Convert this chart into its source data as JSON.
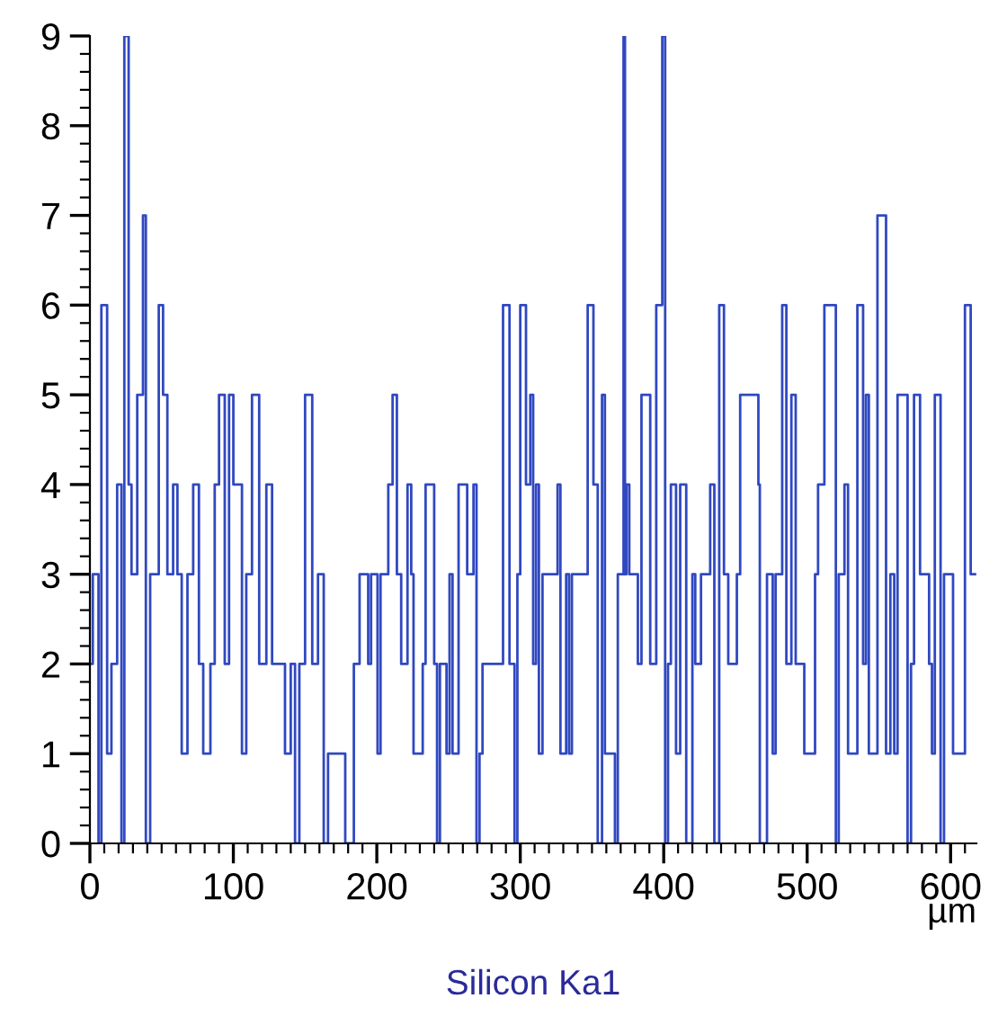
{
  "chart_data": {
    "type": "step",
    "title": "Silicon Ka1",
    "xlabel": "µm",
    "x": [
      0,
      2,
      6,
      8,
      12,
      15,
      19,
      22,
      24,
      27,
      29,
      33,
      37,
      39,
      42,
      48,
      51,
      54,
      58,
      61,
      64,
      68,
      72,
      76,
      79,
      84,
      87,
      90,
      94,
      97,
      100,
      103,
      106,
      109,
      113,
      118,
      123,
      127,
      132,
      136,
      140,
      143,
      146,
      150,
      155,
      159,
      163,
      166,
      172,
      178,
      184,
      188,
      194,
      196,
      200.5,
      202.6,
      208,
      211,
      214,
      217,
      221.4,
      224,
      225.6,
      232,
      234,
      240,
      242,
      244,
      248.6,
      250.7,
      252.8,
      257,
      263,
      267.4,
      269.5,
      271.6,
      273.7,
      288,
      292.5,
      296,
      298,
      300,
      304,
      307,
      309,
      311,
      313,
      315.5,
      326,
      328,
      332,
      334,
      336,
      347,
      351,
      354,
      357,
      359,
      366,
      368,
      372,
      373,
      374,
      376,
      382,
      384.5,
      388.6,
      390.6,
      394.8,
      399,
      401,
      403,
      405,
      408.6,
      411.5,
      415.7,
      420,
      422,
      426,
      432.4,
      435.3,
      438.7,
      442,
      445,
      451,
      453.3,
      466,
      467,
      472,
      476,
      478,
      482.6,
      485.5,
      489,
      492,
      498,
      505.5,
      507.6,
      512,
      520,
      522,
      526,
      528.5,
      535,
      539,
      541,
      543,
      549,
      555,
      558,
      560.7,
      563,
      570,
      572.4,
      574.5,
      578.7,
      585,
      587,
      589,
      593,
      595.4,
      601.7,
      610,
      614,
      617
    ],
    "series": [
      {
        "color": "#3048c0",
        "values": [
          2,
          3,
          0,
          6,
          1,
          2,
          4,
          0,
          9,
          4,
          3,
          5,
          7,
          0,
          3,
          6,
          5,
          3,
          4,
          3,
          1,
          3,
          4,
          2,
          1,
          2,
          4,
          5,
          2,
          5,
          4,
          4,
          1,
          3,
          5,
          2,
          4,
          2,
          2,
          1,
          2,
          0,
          2,
          5,
          2,
          3,
          0,
          1,
          1,
          0,
          2,
          3,
          2,
          3,
          1,
          3,
          4,
          5,
          3,
          2,
          4,
          3,
          1,
          2,
          4,
          2,
          0,
          2,
          1,
          3,
          1,
          4,
          3,
          4,
          0,
          1,
          2,
          6,
          2,
          0,
          3,
          6,
          4,
          5,
          2,
          4,
          1,
          3,
          4,
          1,
          3,
          1,
          3,
          6,
          4,
          0,
          5,
          1,
          0,
          3,
          9,
          3,
          4,
          3,
          2,
          5,
          5,
          2,
          6,
          9,
          0,
          2,
          4,
          1,
          4,
          0,
          3,
          2,
          3,
          4,
          0,
          6,
          3,
          2,
          3,
          5,
          4,
          0,
          3,
          1,
          3,
          6,
          2,
          5,
          2,
          1,
          3,
          4,
          6,
          0,
          3,
          4,
          1,
          6,
          2,
          5,
          1,
          7,
          1,
          3,
          1,
          5,
          0,
          2,
          5,
          3,
          2,
          1,
          5,
          0,
          3,
          1,
          6,
          3,
          3
        ]
      }
    ],
    "xlim": [
      0,
      618
    ],
    "ylim": [
      0,
      9
    ],
    "xticks": [
      0,
      100,
      200,
      300,
      400,
      500,
      600
    ],
    "yticks": [
      0,
      1,
      2,
      3,
      4,
      5,
      6,
      7,
      8,
      9
    ],
    "grid": false,
    "line_style": "solid"
  }
}
